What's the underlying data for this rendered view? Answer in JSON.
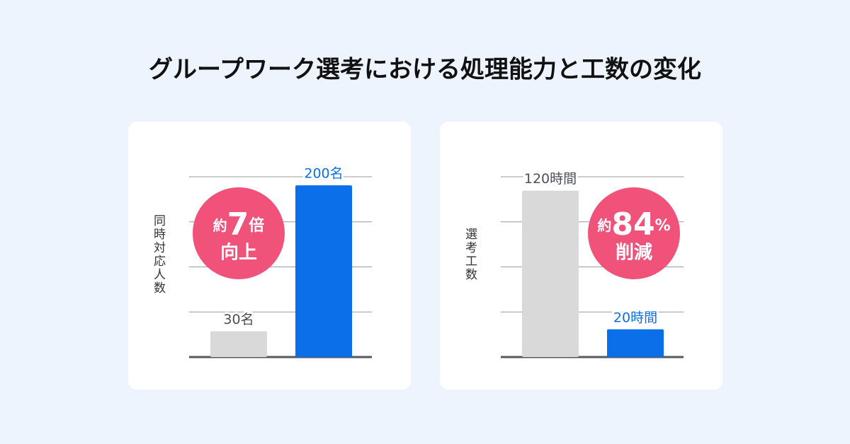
{
  "title": "グループワーク選考における処理能力と工数の変化",
  "chart_data": [
    {
      "type": "bar",
      "ylabel": "同時対応人数",
      "categories": [
        null,
        null
      ],
      "values": [
        30,
        200
      ],
      "value_labels": [
        "30名",
        "200名"
      ],
      "colors": [
        "#d9d9d9",
        "#0a6fe8"
      ],
      "label_colors": [
        "#4a4f57",
        "#0a6fe8"
      ],
      "ylim": [
        0,
        210
      ],
      "yticks": [
        0,
        52.5,
        105,
        157.5,
        210
      ],
      "grid": true,
      "badge": {
        "prefix": "約",
        "number": "7",
        "suffix": "倍",
        "line2": "向上",
        "color": "#f0527a"
      }
    },
    {
      "type": "bar",
      "ylabel": "選考工数",
      "categories": [
        null,
        null
      ],
      "values": [
        120,
        20
      ],
      "value_labels": [
        "120時間",
        "20時間"
      ],
      "colors": [
        "#d9d9d9",
        "#0a6fe8"
      ],
      "label_colors": [
        "#4a4f57",
        "#0a6fe8"
      ],
      "ylim": [
        0,
        130
      ],
      "yticks": [
        0,
        32.5,
        65,
        97.5,
        130
      ],
      "grid": true,
      "badge": {
        "prefix": "約",
        "number": "84",
        "suffix": "%",
        "line2": "削減",
        "color": "#f0527a"
      }
    }
  ]
}
